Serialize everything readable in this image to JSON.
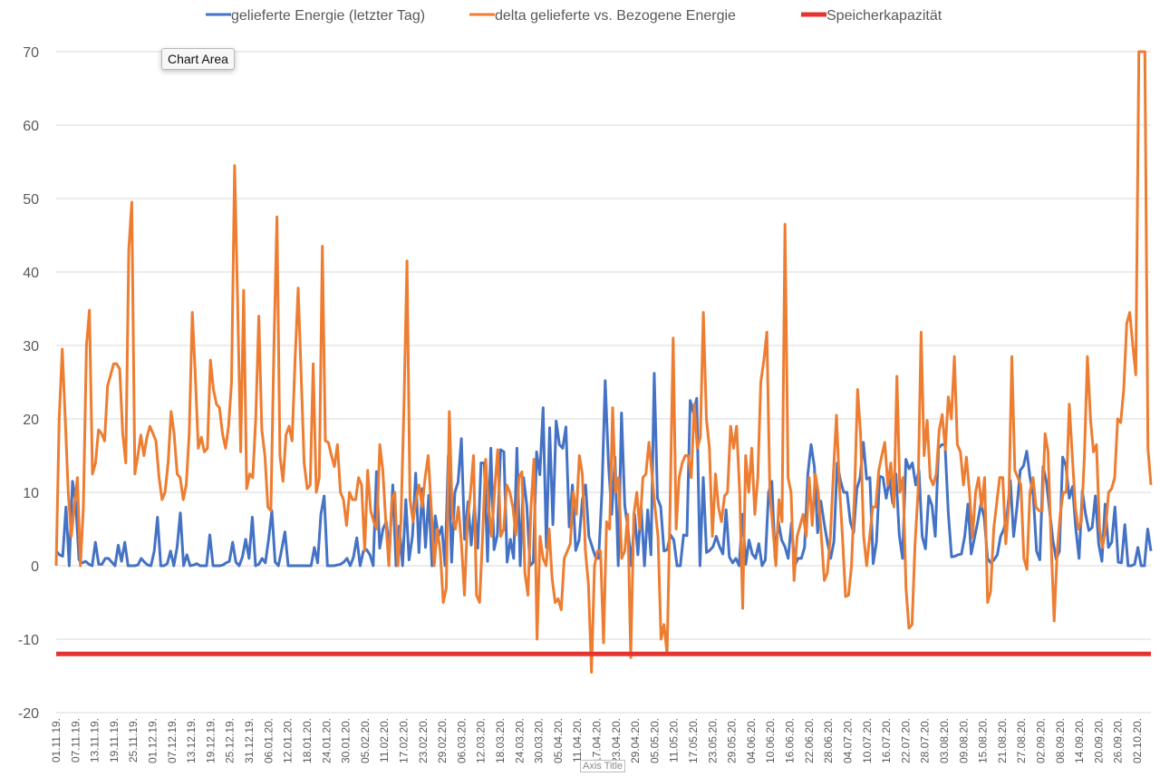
{
  "chart_data": {
    "type": "line",
    "ylim": [
      -20,
      70
    ],
    "yticks": [
      70,
      60,
      50,
      40,
      30,
      20,
      10,
      0,
      -10,
      -20
    ],
    "xlabels": [
      "01.11.19.",
      "07.11.19.",
      "13.11.19.",
      "19.11.19.",
      "25.11.19.",
      "01.12.19.",
      "07.12.19.",
      "13.12.19.",
      "19.12.19.",
      "25.12.19.",
      "31.12.19.",
      "06.01.20.",
      "12.01.20.",
      "18.01.20.",
      "24.01.20.",
      "30.01.20.",
      "05.02.20.",
      "11.02.20.",
      "17.02.20.",
      "23.02.20.",
      "29.02.20.",
      "06.03.20.",
      "12.03.20.",
      "18.03.20.",
      "24.03.20.",
      "30.03.20.",
      "05.04.20.",
      "11.04.20.",
      "17.04.20.",
      "23.04.20.",
      "29.04.20.",
      "05.05.20.",
      "11.05.20.",
      "17.05.20.",
      "23.05.20.",
      "29.05.20.",
      "04.06.20.",
      "10.06.20.",
      "16.06.20.",
      "22.06.20.",
      "28.06.20.",
      "04.07.20.",
      "10.07.20.",
      "16.07.20.",
      "22.07.20.",
      "28.07.20.",
      "03.08.20.",
      "09.08.20.",
      "15.08.20.",
      "21.08.20.",
      "27.08.20.",
      "02.09.20.",
      "08.09.20.",
      "14.09.20.",
      "20.09.20.",
      "26.09.20.",
      "02.10.20."
    ],
    "legend_position": "top",
    "series": [
      {
        "name": "gelieferte Energie (letzter Tag)",
        "color": "#4472C4",
        "values": [
          2,
          1.5,
          1.3,
          8,
          0,
          11.5,
          8.5,
          0.8,
          0.4,
          0.6,
          0.2,
          0,
          3.2,
          0.2,
          0.2,
          1,
          1,
          0.5,
          0,
          2.8,
          0.6,
          3.2,
          0,
          0,
          0,
          0.1,
          1,
          0.5,
          0.1,
          0,
          2,
          6.6,
          0,
          0,
          0.3,
          2,
          0,
          2.5,
          7.2,
          0,
          1.5,
          0,
          0.1,
          0.3,
          0,
          0,
          0,
          4.2,
          0,
          0,
          0,
          0.1,
          0.4,
          0.6,
          3.2,
          0.5,
          0,
          1.2,
          3.6,
          1,
          6.6,
          0,
          0.2,
          1,
          0.4,
          3.6,
          7.5,
          0.5,
          0,
          2.2,
          4.6,
          0,
          0,
          0,
          0,
          0,
          0,
          0,
          0,
          2.5,
          0.4,
          7,
          9.5,
          0,
          0,
          0,
          0.1,
          0.2,
          0.5,
          1,
          0,
          1.2,
          3.8,
          0,
          2,
          2.2,
          1.5,
          0,
          12.8,
          2.4,
          5,
          6,
          2,
          11,
          0,
          5.4,
          0,
          9,
          0.8,
          4,
          12.6,
          1.8,
          10.5,
          2.5,
          9.6,
          0,
          6.8,
          4,
          5.3,
          0,
          15,
          0.5,
          10,
          11.4,
          17.3,
          3.6,
          8.7,
          2.8,
          8.2,
          2.4,
          14,
          14,
          0.6,
          16,
          2.2,
          4.2,
          15.8,
          15.5,
          0.5,
          3.6,
          1,
          16,
          0,
          12,
          8.2,
          0,
          0.5,
          15.5,
          12.4,
          21.5,
          2.5,
          18.8,
          5.6,
          19.7,
          16.5,
          16,
          18.9,
          5.3,
          11,
          2.1,
          3.5,
          9,
          11,
          4,
          2.6,
          1.2,
          1,
          10,
          25.2,
          14,
          7,
          14.8,
          0,
          20.8,
          8.2,
          5,
          0,
          7,
          1.5,
          8.1,
          0,
          7.6,
          1.5,
          26.2,
          9.2,
          8,
          2,
          2.2,
          4.2,
          3.5,
          0,
          0,
          4.2,
          4.1,
          22.5,
          20.8,
          22.8,
          0,
          12,
          1.8,
          2.1,
          2.6,
          4,
          2.6,
          1.6,
          7.6,
          1.2,
          0.4,
          1,
          0,
          7,
          0.2,
          3.5,
          1.6,
          1,
          3,
          0,
          0.8,
          10,
          11.5,
          1,
          6,
          3.5,
          2.6,
          1,
          5.8,
          0,
          1,
          1,
          2.5,
          12.5,
          16.5,
          13.5,
          4.5,
          8.8,
          5.8,
          3.2,
          1,
          3.3,
          14,
          11.6,
          10,
          10,
          6,
          4.5,
          10.5,
          12,
          16.8,
          11.8,
          12,
          0.3,
          3.2,
          12.2,
          12,
          9.2,
          11.8,
          8.5,
          12.5,
          4.2,
          1,
          14.5,
          13.2,
          14,
          11,
          13,
          4,
          2.3,
          9.5,
          8.2,
          4,
          16,
          16.5,
          16.5,
          7.2,
          1.2,
          1.3,
          1.5,
          1.6,
          4,
          8.4,
          1.6,
          3.8,
          6,
          8.5,
          6.5,
          1,
          0.4,
          0.8,
          1.5,
          4,
          5,
          7,
          11.6,
          4,
          8,
          13,
          13.6,
          15.6,
          12,
          9.5,
          2,
          0.8,
          13.5,
          11.5,
          7.5,
          3.5,
          0.9,
          2,
          14.8,
          13.6,
          9.2,
          10.8,
          5,
          1,
          10.2,
          7,
          4.8,
          5.2,
          9.5,
          3,
          0.6,
          8.4,
          2.5,
          3.2,
          8,
          0.5,
          0.4,
          5.6,
          0,
          0,
          0.2,
          2.5,
          0,
          0,
          5,
          2
        ]
      },
      {
        "name": "delta gelieferte vs. Bezogene Energie",
        "color": "#ED7D31",
        "values": [
          0,
          20,
          29.5,
          20,
          10,
          4,
          8,
          12,
          0,
          8,
          30,
          34.8,
          12.5,
          14,
          18.5,
          18,
          17,
          24.5,
          26,
          27.5,
          27.5,
          26.8,
          18,
          14,
          43,
          49.5,
          12.5,
          15,
          17.8,
          15,
          17.5,
          19,
          18,
          17,
          12,
          9,
          10,
          14,
          21,
          18,
          12.5,
          12,
          9,
          11,
          18,
          34.5,
          26,
          16,
          17.5,
          15.5,
          16,
          28,
          24,
          22,
          21.5,
          18,
          16,
          19,
          25,
          54.5,
          36,
          15.5,
          37.5,
          10.5,
          12.5,
          12,
          20,
          34,
          18.5,
          15,
          8,
          7.5,
          30,
          47.5,
          15,
          11.5,
          17.8,
          19,
          17,
          28,
          37.8,
          26,
          14,
          10.5,
          11,
          27.5,
          10,
          12,
          43.5,
          17,
          16.8,
          15,
          13.5,
          16.5,
          10,
          9,
          5.5,
          10,
          9,
          9,
          12,
          11,
          2,
          13,
          7.5,
          6,
          5,
          16.5,
          13,
          6,
          0,
          9,
          10,
          0,
          6,
          22,
          41.5,
          9,
          6,
          9,
          11,
          8,
          12,
          15,
          8,
          0,
          5,
          2,
          -5,
          -3,
          21,
          7,
          5,
          8,
          3,
          -4,
          6,
          10,
          15,
          -4,
          -5,
          4,
          14.5,
          8,
          4,
          10.5,
          15.8,
          4,
          5,
          11,
          10,
          8,
          4.2,
          12,
          12.8,
          -1,
          -4,
          8,
          14.5,
          -10,
          4,
          1,
          0,
          5,
          -1.8,
          -5,
          -4.5,
          -6,
          1,
          2,
          3,
          10,
          7,
          15,
          12.5,
          2,
          -2.5,
          -14.5,
          0,
          2,
          2,
          -10.5,
          6,
          5,
          21.5,
          10,
          12,
          1,
          2,
          7,
          -12.5,
          7,
          10,
          5,
          12,
          12.5,
          16.8,
          12.5,
          8,
          4,
          -10,
          -8,
          -12,
          8,
          31,
          5,
          12,
          14,
          15,
          15,
          12,
          22,
          16,
          17.5,
          34.5,
          20,
          16,
          4,
          12.5,
          8,
          6,
          9.5,
          10,
          19,
          16,
          19,
          10,
          -5.8,
          15,
          10,
          16,
          7,
          12,
          25,
          28,
          31.8,
          10,
          5,
          0,
          9,
          6,
          46.5,
          12,
          10,
          -2,
          4,
          5.5,
          7,
          4,
          12,
          5.5,
          12.5,
          10,
          4,
          -2,
          -1,
          4,
          12.5,
          20.5,
          10.8,
          4,
          -4.2,
          -4,
          0,
          10,
          24,
          18,
          4,
          0,
          4,
          8,
          8,
          13,
          15,
          16.8,
          11,
          14,
          8,
          25.8,
          10,
          12,
          -3,
          -8.5,
          -8,
          3,
          10,
          31.8,
          15,
          19.8,
          12,
          11,
          12.5,
          18.5,
          20.6,
          15.8,
          23,
          20,
          28.5,
          16.5,
          15.5,
          11,
          14.8,
          10,
          3.8,
          10,
          12,
          8,
          12,
          -5,
          -3.5,
          5,
          8.5,
          12,
          12,
          3,
          8.5,
          28.5,
          13,
          12,
          11,
          1,
          -0.5,
          10,
          12,
          8,
          7.5,
          7.5,
          18,
          15.5,
          3,
          -7.5,
          2,
          7,
          10,
          10,
          22,
          15,
          8,
          5,
          6,
          15,
          28.5,
          20,
          15.5,
          16.5,
          5,
          2.5,
          5,
          10,
          10.5,
          12,
          20,
          19.5,
          24,
          33,
          34.5,
          30,
          26,
          70,
          70,
          70,
          16,
          11
        ]
      },
      {
        "name": "Speicherkapazität",
        "color": "#E5342F",
        "constant": -12
      }
    ]
  },
  "tooltip": "Chart Area",
  "axis_title": "Axis Title"
}
